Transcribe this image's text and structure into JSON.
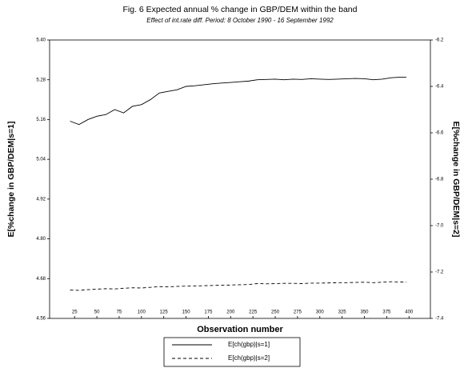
{
  "chart_data": {
    "type": "line",
    "title": "Fig. 6 Expected annual % change in GBP/DEM  within the band",
    "subtitle": "Effect of int.rate diff. Period: 8 October 1990 - 16 September 1992",
    "x_label": "Observation number",
    "y_label": "E[%change in GBP/DEM|s=1]",
    "y2_label": "E[%change in GBP/DEM|s=2]",
    "x": [
      20,
      30,
      40,
      50,
      60,
      70,
      80,
      90,
      100,
      110,
      120,
      130,
      140,
      150,
      160,
      170,
      180,
      190,
      200,
      210,
      220,
      230,
      240,
      250,
      260,
      270,
      280,
      290,
      300,
      310,
      320,
      330,
      340,
      350,
      360,
      370,
      380,
      390,
      397
    ],
    "series": [
      {
        "name": "E[ch(gbp)|s=1]",
        "color": "#000000",
        "linestyle": "solid",
        "values": [
          5.155,
          5.145,
          5.16,
          5.17,
          5.175,
          5.19,
          5.18,
          5.2,
          5.205,
          5.22,
          5.24,
          5.245,
          5.25,
          5.26,
          5.262,
          5.265,
          5.268,
          5.27,
          5.272,
          5.274,
          5.276,
          5.28,
          5.281,
          5.282,
          5.28,
          5.282,
          5.281,
          5.283,
          5.282,
          5.281,
          5.282,
          5.283,
          5.284,
          5.283,
          5.28,
          5.282,
          5.286,
          5.288,
          5.288
        ]
      },
      {
        "name": "E[ch(gbp)|s=2]",
        "color": "#000000",
        "linestyle": "dashed",
        "axis": "y2",
        "values": [
          -7.278,
          -7.279,
          -7.276,
          -7.274,
          -7.272,
          -7.273,
          -7.27,
          -7.268,
          -7.269,
          -7.266,
          -7.263,
          -7.264,
          -7.262,
          -7.261,
          -7.26,
          -7.259,
          -7.258,
          -7.257,
          -7.256,
          -7.255,
          -7.254,
          -7.25,
          -7.251,
          -7.25,
          -7.249,
          -7.249,
          -7.25,
          -7.248,
          -7.248,
          -7.247,
          -7.246,
          -7.246,
          -7.245,
          -7.244,
          -7.246,
          -7.244,
          -7.242,
          -7.243,
          -7.244
        ]
      }
    ],
    "xlim": [
      -3,
      424
    ],
    "xticks": [
      25,
      50,
      75,
      100,
      125,
      150,
      175,
      200,
      225,
      250,
      275,
      300,
      325,
      350,
      375,
      400
    ],
    "ylim": [
      4.56,
      5.4
    ],
    "yticks": [
      4.56,
      4.68,
      {
        "value": 4.8,
        "label": "4.80"
      },
      4.92,
      5.04,
      5.16,
      5.28,
      {
        "value": 5.4,
        "label": "5.40"
      }
    ],
    "y2lim": [
      -7.4,
      -6.2
    ],
    "y2ticks": [
      -7.4,
      -7.2,
      {
        "value": -7.0,
        "label": "-7.0"
      },
      -6.8,
      -6.6,
      -6.4,
      -6.2
    ],
    "legend": "bottom"
  }
}
